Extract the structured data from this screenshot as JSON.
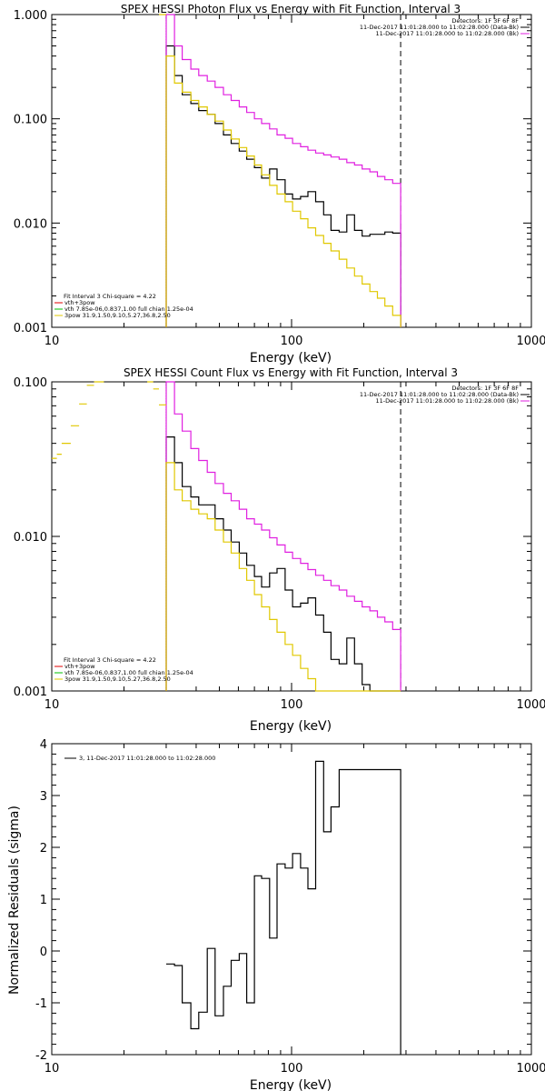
{
  "colors": {
    "black": "#000000",
    "magenta": "#e020e0",
    "yellow": "#e0c800",
    "green": "#00c000",
    "red": "#e00000",
    "purple": "#8040ff"
  },
  "chart_data": [
    {
      "type": "line",
      "title": "SPEX HESSI Photon Flux vs Energy with Fit Function, Interval 3",
      "xlabel": "Energy (keV)",
      "ylabel": "",
      "xscale": "log",
      "yscale": "log",
      "xlim": [
        10,
        1000
      ],
      "ylim": [
        0.001,
        1.0
      ],
      "x_tick_labels": [
        "10",
        "100",
        "1000"
      ],
      "y_tick_labels": [
        "0.001",
        "0.010",
        "0.100",
        "1.000"
      ],
      "vlines": [
        {
          "x": 285,
          "style": "dashed"
        },
        {
          "x": 30,
          "style": "dotted"
        }
      ],
      "info_lines": [
        "Detectors: 1F 3F 6F 8F",
        "11-Dec-2017 11:01:28.000 to 11:02:28.000 (Data-Bk)",
        "11-Dec-2017 11:01:28.000 to 11:02:28.000 (Bk)"
      ],
      "legend": {
        "placement": "bottom-left",
        "header": "Fit Interval 3   Chi-square = 4.22",
        "lines": [
          {
            "text": "vth+3pow",
            "color": "red"
          },
          {
            "text": "vth 7.85e-06,0.837,1.00  full chian 1.25e-04",
            "color": "green"
          },
          {
            "text": "3pow 31.9,1.50,9.10,5.27,36.8,2.50",
            "color": "yellow"
          }
        ]
      },
      "bin_edges": [
        30,
        32.5,
        35,
        38,
        41,
        44.5,
        48,
        52,
        56,
        60.5,
        65,
        70,
        75,
        81,
        87,
        94,
        101,
        109,
        117,
        126,
        136,
        146,
        158,
        170,
        183,
        197,
        212,
        228,
        245,
        264,
        285
      ],
      "series": [
        {
          "name": "",
          "color": "black",
          "style": "step",
          "values": [
            0.5,
            0.26,
            0.17,
            0.14,
            0.12,
            0.11,
            0.09,
            0.07,
            0.058,
            0.049,
            0.041,
            0.034,
            0.027,
            0.033,
            0.026,
            0.019,
            0.017,
            0.018,
            0.02,
            0.016,
            0.012,
            0.0085,
            0.0082,
            0.012,
            0.0085,
            0.0075,
            0.0078,
            0.0078,
            0.0082,
            0.008
          ]
        },
        {
          "name": "",
          "color": "magenta",
          "style": "step",
          "extra_left": [
            {
              "x0": 30,
              "x1": 32.5,
              "y": 1.0
            }
          ],
          "values": [
            1.0,
            0.5,
            0.37,
            0.3,
            0.26,
            0.23,
            0.2,
            0.17,
            0.15,
            0.13,
            0.115,
            0.1,
            0.09,
            0.08,
            0.07,
            0.065,
            0.058,
            0.054,
            0.05,
            0.047,
            0.045,
            0.043,
            0.041,
            0.038,
            0.036,
            0.033,
            0.031,
            0.028,
            0.026,
            0.024
          ]
        },
        {
          "name": "",
          "color": "yellow",
          "style": "step",
          "extra_left": [
            {
              "x0": 28,
              "x1": 30,
              "y": 1.0
            }
          ],
          "values": [
            0.4,
            0.22,
            0.18,
            0.15,
            0.13,
            0.11,
            0.095,
            0.078,
            0.064,
            0.053,
            0.044,
            0.036,
            0.029,
            0.023,
            0.019,
            0.016,
            0.013,
            0.011,
            0.009,
            0.0076,
            0.0064,
            0.0054,
            0.0045,
            0.0037,
            0.0031,
            0.0026,
            0.0022,
            0.0019,
            0.0016,
            0.0013
          ]
        }
      ]
    },
    {
      "type": "line",
      "title": "SPEX HESSI Count Flux vs Energy with Fit Function, Interval 3",
      "xlabel": "Energy (keV)",
      "ylabel": "",
      "xscale": "log",
      "yscale": "log",
      "xlim": [
        10,
        1000
      ],
      "ylim": [
        0.001,
        0.1
      ],
      "x_tick_labels": [
        "10",
        "100",
        "1000"
      ],
      "y_tick_labels": [
        "0.001",
        "0.010",
        "0.100"
      ],
      "vlines": [
        {
          "x": 285,
          "style": "dashed"
        },
        {
          "x": 30,
          "style": "dotted"
        }
      ],
      "info_lines": [
        "Detectors: 1F 3F 6F 8F",
        "11-Dec-2017 11:01:28.000 to 11:02:28.000 (Data-Bk)",
        "11-Dec-2017 11:01:28.000 to 11:02:28.000 (Bk)"
      ],
      "legend": {
        "placement": "bottom-left",
        "header": "Fit Interval 3   Chi-square = 4.22",
        "lines": [
          {
            "text": "vth+3pow",
            "color": "red"
          },
          {
            "text": "vth 7.85e-06,0.837,1.00  full chian 1.25e-04",
            "color": "green"
          },
          {
            "text": "3pow 31.9,1.50,9.10,5.27,36.8,2.50",
            "color": "yellow"
          }
        ]
      },
      "bin_edges": [
        30,
        32.5,
        35,
        38,
        41,
        44.5,
        48,
        52,
        56,
        60.5,
        65,
        70,
        75,
        81,
        87,
        94,
        101,
        109,
        117,
        126,
        136,
        146,
        158,
        170,
        183,
        197,
        212,
        228,
        245,
        264,
        285
      ],
      "series": [
        {
          "name": "",
          "color": "black",
          "style": "step",
          "values": [
            0.044,
            0.03,
            0.021,
            0.018,
            0.016,
            0.016,
            0.013,
            0.011,
            0.0092,
            0.0078,
            0.0065,
            0.0055,
            0.0047,
            0.0058,
            0.0062,
            0.0045,
            0.0035,
            0.0037,
            0.004,
            0.0031,
            0.0024,
            0.0016,
            0.0015,
            0.0022,
            0.0015,
            0.0011,
            0.001,
            0.001,
            0.001,
            0.001
          ]
        },
        {
          "name": "",
          "color": "magenta",
          "style": "step",
          "extra_left": [
            {
              "x0": 30,
              "x1": 32.5,
              "y": 0.1
            }
          ],
          "values": [
            0.1,
            0.062,
            0.048,
            0.037,
            0.031,
            0.026,
            0.022,
            0.019,
            0.017,
            0.015,
            0.013,
            0.012,
            0.011,
            0.0098,
            0.0088,
            0.0079,
            0.0072,
            0.0067,
            0.0061,
            0.0056,
            0.0052,
            0.0048,
            0.0045,
            0.0041,
            0.0038,
            0.0035,
            0.0033,
            0.003,
            0.0028,
            0.0025
          ]
        },
        {
          "name": "",
          "color": "yellow",
          "style": "step",
          "extra_left": [
            {
              "x0": 10,
              "x1": 10.5,
              "y": 0.032
            },
            {
              "x0": 10.5,
              "x1": 11,
              "y": 0.034
            },
            {
              "x0": 11,
              "x1": 12,
              "y": 0.04
            },
            {
              "x0": 12,
              "x1": 13,
              "y": 0.052
            },
            {
              "x0": 13,
              "x1": 14,
              "y": 0.072
            },
            {
              "x0": 14,
              "x1": 15,
              "y": 0.095
            },
            {
              "x0": 15,
              "x1": 16.5,
              "y": 0.1
            },
            {
              "x0": 25,
              "x1": 26.5,
              "y": 0.1
            },
            {
              "x0": 26.5,
              "x1": 28,
              "y": 0.09
            },
            {
              "x0": 28,
              "x1": 30,
              "y": 0.071
            }
          ],
          "values": [
            0.03,
            0.02,
            0.017,
            0.015,
            0.014,
            0.013,
            0.011,
            0.0092,
            0.0078,
            0.0062,
            0.0052,
            0.0042,
            0.0035,
            0.0029,
            0.0024,
            0.002,
            0.0017,
            0.0014,
            0.0012,
            0.001,
            0.001,
            0.001,
            0.001,
            0.001,
            0.001,
            0.001,
            0.001,
            0.001,
            0.001,
            0.001
          ]
        }
      ]
    },
    {
      "type": "line",
      "title": "",
      "xlabel": "Energy (keV)",
      "ylabel": "Normalized Residuals (sigma)",
      "xscale": "log",
      "yscale": "linear",
      "xlim": [
        10,
        1000
      ],
      "ylim": [
        -2,
        4
      ],
      "x_tick_labels": [
        "10",
        "100",
        "1000"
      ],
      "y_tick_labels": [
        "-2",
        "-1",
        "0",
        "1",
        "2",
        "3",
        "4"
      ],
      "legend": {
        "placement": "top-left",
        "lines": [
          {
            "text": "3, 11-Dec-2017 11:01:28.000 to 11:02:28.000",
            "color": "black"
          }
        ]
      },
      "bin_edges": [
        30,
        32.5,
        35,
        38,
        41,
        44.5,
        48,
        52,
        56,
        60.5,
        65,
        70,
        75,
        81,
        87,
        94,
        101,
        109,
        117,
        126,
        136,
        146,
        158,
        170,
        183,
        197,
        212,
        228,
        245,
        264,
        285
      ],
      "series": [
        {
          "name": "3, 11-Dec-2017 11:01:28.000 to 11:02:28.000",
          "color": "black",
          "style": "step",
          "values": [
            -0.25,
            -0.28,
            -1.0,
            -1.5,
            -1.18,
            0.05,
            -1.25,
            -0.68,
            -0.18,
            -0.05,
            -1.0,
            1.45,
            1.4,
            0.25,
            1.68,
            1.6,
            1.88,
            1.6,
            1.2,
            3.66,
            2.3,
            2.78,
            3.5,
            3.5,
            3.5,
            3.5,
            3.5,
            3.5,
            3.5,
            3.5
          ]
        }
      ]
    }
  ]
}
